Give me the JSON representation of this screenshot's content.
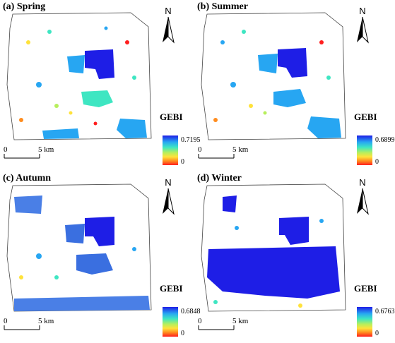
{
  "panels": [
    {
      "title": "(a) Spring",
      "legend_title": "GEBI",
      "legend_max": "0.7195",
      "legend_min": "0"
    },
    {
      "title": "(b) Summer",
      "legend_title": "GEBI",
      "legend_max": "0.6899",
      "legend_min": "0"
    },
    {
      "title": "(c) Autumn",
      "legend_title": "GEBI",
      "legend_max": "0.6848",
      "legend_min": "0"
    },
    {
      "title": "(d) Winter",
      "legend_title": "GEBI",
      "legend_max": "0.6763",
      "legend_min": "0"
    }
  ],
  "north_label": "N",
  "scale": {
    "start": "0",
    "end": "5 km"
  },
  "colors": {
    "high": "#1e1ee6",
    "mid_high": "#27a6f2",
    "mid": "#3ee6c2",
    "mid_low": "#b7ef5c",
    "low_mid": "#ffe23b",
    "low": "#ff1e1e",
    "boundary": "#444444"
  }
}
